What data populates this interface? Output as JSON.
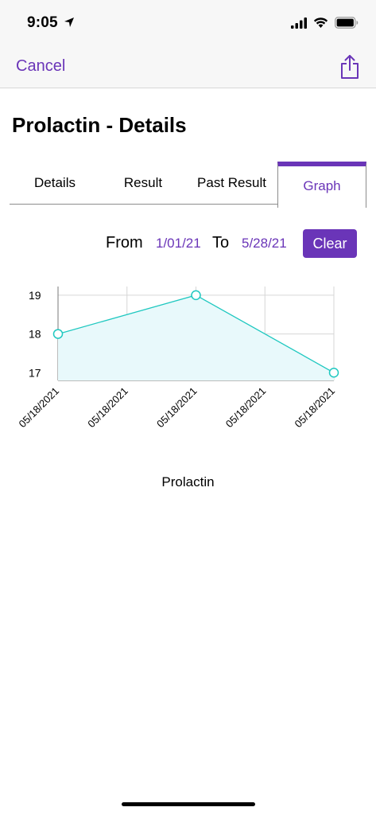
{
  "status_bar": {
    "time": "9:05"
  },
  "nav": {
    "cancel_label": "Cancel",
    "share_icon": "share-icon"
  },
  "page": {
    "title": "Prolactin - Details"
  },
  "tabs": [
    {
      "label": "Details",
      "active": false
    },
    {
      "label": "Result",
      "active": false
    },
    {
      "label": "Past Result",
      "active": false
    },
    {
      "label": "Graph",
      "active": true
    }
  ],
  "filter": {
    "from_label": "From",
    "from_value": "1/01/21",
    "to_label": "To",
    "to_value": "5/28/21",
    "clear_label": "Clear"
  },
  "colors": {
    "accent": "#6a35b8",
    "line": "#1fc8c0",
    "area": "#e8f9fb"
  },
  "chart_data": {
    "type": "line",
    "categories": [
      "05/18/2021",
      "05/18/2021",
      "05/18/2021",
      "05/18/2021",
      "05/18/2021"
    ],
    "series": [
      {
        "name": "Prolactin",
        "points": [
          {
            "x": "05/18/2021",
            "y": 18
          },
          {
            "x": "05/18/2021",
            "y": 19
          },
          {
            "x": "05/18/2021",
            "y": 17
          }
        ]
      }
    ],
    "y_ticks": [
      "19",
      "18",
      "17"
    ],
    "ylim": [
      16.8,
      19.1
    ],
    "grid": true,
    "legend": "bottom"
  }
}
